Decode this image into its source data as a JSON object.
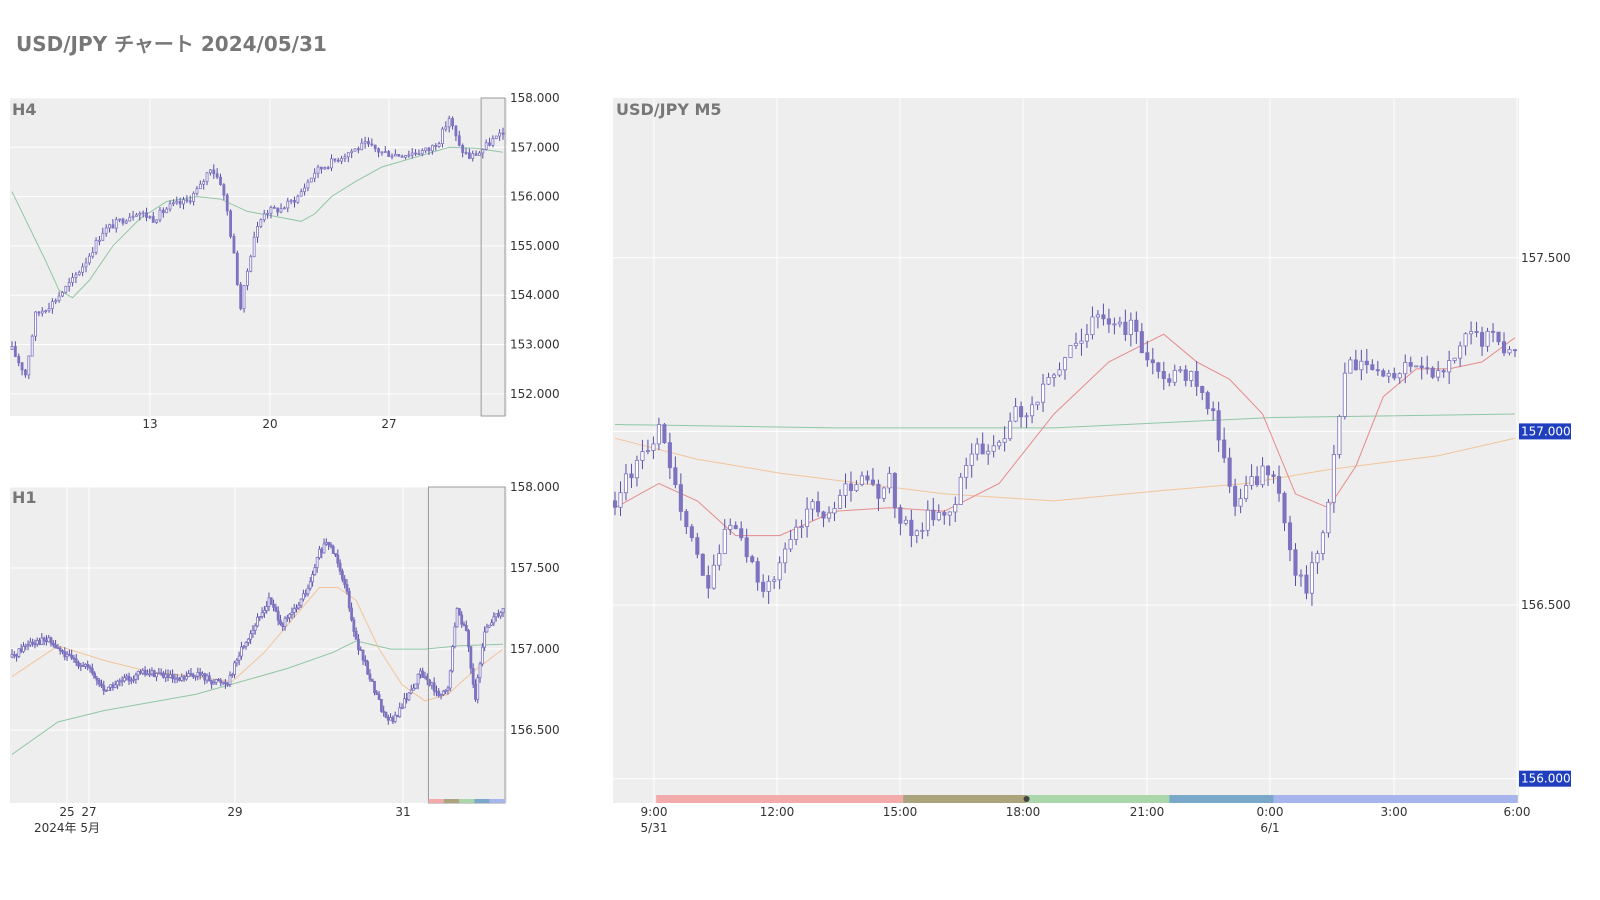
{
  "page": {
    "title": "USD/JPY チャート 2024/05/31"
  },
  "colors": {
    "plot_bg": "#eeeeee",
    "grid": "#ffffff",
    "candle": "#7d73c0",
    "wick": "#5a4fa8",
    "ma_green": "#8fc7a3",
    "ma_red": "#e68a8a",
    "ma_orange": "#f2c49a",
    "price_tag": "#1f3fbf",
    "sessions": [
      "#f2aaaa",
      "#aaa37c",
      "#aad6aa",
      "#7aa8c8",
      "#a8b4ec"
    ]
  },
  "chart_data": [
    {
      "id": "h4",
      "type": "candlestick",
      "title": "H4",
      "x_ticks": [
        "13",
        "20",
        "27"
      ],
      "y_ticks": [
        "158.000",
        "157.000",
        "156.000",
        "155.000",
        "154.000",
        "153.000",
        "152.000"
      ],
      "ylim": [
        151.55,
        158.0
      ],
      "close_path": [
        [
          0,
          152.9
        ],
        [
          4,
          152.4
        ],
        [
          7,
          153.6
        ],
        [
          12,
          153.85
        ],
        [
          18,
          154.3
        ],
        [
          22,
          154.7
        ],
        [
          27,
          155.3
        ],
        [
          32,
          155.5
        ],
        [
          37,
          155.7
        ],
        [
          42,
          155.55
        ],
        [
          47,
          155.8
        ],
        [
          52,
          155.9
        ],
        [
          56,
          156.2
        ],
        [
          59,
          156.6
        ],
        [
          62,
          156.3
        ],
        [
          64,
          155.7
        ],
        [
          66,
          154.8
        ],
        [
          68,
          153.75
        ],
        [
          70,
          154.5
        ],
        [
          72,
          155.2
        ],
        [
          75,
          155.7
        ],
        [
          80,
          155.75
        ],
        [
          85,
          156.0
        ],
        [
          90,
          156.5
        ],
        [
          95,
          156.7
        ],
        [
          100,
          156.9
        ],
        [
          105,
          157.05
        ],
        [
          110,
          156.9
        ],
        [
          115,
          156.85
        ],
        [
          120,
          156.9
        ],
        [
          124,
          156.95
        ],
        [
          127,
          157.15
        ],
        [
          130,
          157.6
        ],
        [
          133,
          157.0
        ],
        [
          136,
          156.8
        ],
        [
          139,
          156.9
        ],
        [
          143,
          157.15
        ],
        [
          146,
          157.25
        ]
      ],
      "ma": [
        {
          "color_key": "ma_green",
          "points": [
            [
              0,
              156.1
            ],
            [
              5,
              155.4
            ],
            [
              10,
              154.7
            ],
            [
              14,
              154.1
            ],
            [
              18,
              153.95
            ],
            [
              23,
              154.3
            ],
            [
              30,
              155.0
            ],
            [
              38,
              155.55
            ],
            [
              46,
              155.9
            ],
            [
              55,
              156.0
            ],
            [
              62,
              155.95
            ],
            [
              70,
              155.7
            ],
            [
              78,
              155.6
            ],
            [
              86,
              155.5
            ],
            [
              90,
              155.65
            ],
            [
              95,
              156.0
            ],
            [
              102,
              156.3
            ],
            [
              110,
              156.6
            ],
            [
              120,
              156.8
            ],
            [
              130,
              157.0
            ],
            [
              138,
              156.98
            ],
            [
              146,
              156.9
            ]
          ]
        }
      ],
      "highlight_x": [
        139.5,
        146
      ]
    },
    {
      "id": "h1",
      "type": "candlestick",
      "title": "H1",
      "x_ticks": [
        "25",
        "27",
        "29",
        "31"
      ],
      "x_tick_sub": "2024年 5月",
      "y_ticks": [
        "158.000",
        "157.500",
        "157.000",
        "156.500"
      ],
      "ylim": [
        156.05,
        158.0
      ],
      "close_path": [
        [
          0,
          156.95
        ],
        [
          8,
          157.05
        ],
        [
          16,
          157.05
        ],
        [
          24,
          156.95
        ],
        [
          32,
          156.9
        ],
        [
          40,
          156.75
        ],
        [
          48,
          156.8
        ],
        [
          56,
          156.85
        ],
        [
          64,
          156.85
        ],
        [
          72,
          156.8
        ],
        [
          80,
          156.85
        ],
        [
          88,
          156.8
        ],
        [
          94,
          156.8
        ],
        [
          100,
          157.0
        ],
        [
          106,
          157.15
        ],
        [
          112,
          157.3
        ],
        [
          118,
          157.15
        ],
        [
          124,
          157.25
        ],
        [
          130,
          157.4
        ],
        [
          134,
          157.6
        ],
        [
          138,
          157.65
        ],
        [
          142,
          157.55
        ],
        [
          146,
          157.35
        ],
        [
          150,
          157.05
        ],
        [
          154,
          156.9
        ],
        [
          158,
          156.75
        ],
        [
          162,
          156.6
        ],
        [
          166,
          156.55
        ],
        [
          170,
          156.65
        ],
        [
          174,
          156.75
        ],
        [
          178,
          156.85
        ],
        [
          182,
          156.8
        ],
        [
          186,
          156.7
        ],
        [
          190,
          156.75
        ],
        [
          194,
          157.25
        ],
        [
          198,
          157.1
        ],
        [
          202,
          156.7
        ],
        [
          206,
          157.1
        ],
        [
          210,
          157.2
        ],
        [
          214,
          157.25
        ]
      ],
      "ma": [
        {
          "color_key": "ma_green",
          "points": [
            [
              0,
              156.35
            ],
            [
              20,
              156.55
            ],
            [
              40,
              156.62
            ],
            [
              60,
              156.67
            ],
            [
              80,
              156.72
            ],
            [
              100,
              156.8
            ],
            [
              120,
              156.88
            ],
            [
              140,
              156.98
            ],
            [
              150,
              157.05
            ],
            [
              165,
              157.0
            ],
            [
              180,
              157.0
            ],
            [
              195,
              157.02
            ],
            [
              214,
              157.03
            ]
          ]
        },
        {
          "color_key": "ma_orange",
          "points": [
            [
              0,
              156.83
            ],
            [
              20,
              157.02
            ],
            [
              40,
              156.93
            ],
            [
              60,
              156.86
            ],
            [
              80,
              156.83
            ],
            [
              96,
              156.8
            ],
            [
              110,
              156.98
            ],
            [
              122,
              157.18
            ],
            [
              134,
              157.38
            ],
            [
              142,
              157.38
            ],
            [
              150,
              157.3
            ],
            [
              160,
              157.0
            ],
            [
              170,
              156.78
            ],
            [
              180,
              156.68
            ],
            [
              190,
              156.72
            ],
            [
              200,
              156.85
            ],
            [
              214,
              157.0
            ]
          ]
        }
      ],
      "highlight_x": [
        181.5,
        214
      ],
      "sessions_visible": true
    },
    {
      "id": "m5",
      "type": "candlestick",
      "title": "USD/JPY M5",
      "x_ticks": [
        "9:00",
        "12:00",
        "15:00",
        "18:00",
        "21:00",
        "0:00",
        "3:00",
        "6:00"
      ],
      "x_tick_subs": {
        "0": "5/31",
        "5": "6/1"
      },
      "y_ticks": [
        "157.500",
        "157.000",
        "156.500",
        "156.000"
      ],
      "price_tags": [
        "157.000",
        "156.000"
      ],
      "ylim": [
        155.93,
        157.96
      ],
      "close_path": [
        [
          0,
          156.8
        ],
        [
          3,
          156.88
        ],
        [
          5,
          156.95
        ],
        [
          8,
          157.0
        ],
        [
          10,
          156.9
        ],
        [
          12,
          156.75
        ],
        [
          15,
          156.65
        ],
        [
          17,
          156.55
        ],
        [
          20,
          156.72
        ],
        [
          22,
          156.7
        ],
        [
          25,
          156.62
        ],
        [
          27,
          156.55
        ],
        [
          30,
          156.6
        ],
        [
          33,
          156.72
        ],
        [
          36,
          156.8
        ],
        [
          39,
          156.75
        ],
        [
          42,
          156.83
        ],
        [
          45,
          156.85
        ],
        [
          48,
          156.82
        ],
        [
          50,
          156.86
        ],
        [
          52,
          156.75
        ],
        [
          54,
          156.7
        ],
        [
          57,
          156.75
        ],
        [
          60,
          156.75
        ],
        [
          62,
          156.8
        ],
        [
          64,
          156.9
        ],
        [
          66,
          156.95
        ],
        [
          69,
          156.95
        ],
        [
          71,
          156.98
        ],
        [
          73,
          157.05
        ],
        [
          75,
          157.05
        ],
        [
          77,
          157.1
        ],
        [
          79,
          157.15
        ],
        [
          81,
          157.2
        ],
        [
          84,
          157.25
        ],
        [
          86,
          157.3
        ],
        [
          88,
          157.35
        ],
        [
          91,
          157.3
        ],
        [
          94,
          157.3
        ],
        [
          96,
          157.25
        ],
        [
          98,
          157.2
        ],
        [
          100,
          157.15
        ],
        [
          103,
          157.18
        ],
        [
          106,
          157.15
        ],
        [
          109,
          157.05
        ],
        [
          111,
          156.9
        ],
        [
          113,
          156.78
        ],
        [
          116,
          156.85
        ],
        [
          118,
          156.88
        ],
        [
          120,
          156.85
        ],
        [
          122,
          156.75
        ],
        [
          124,
          156.6
        ],
        [
          126,
          156.55
        ],
        [
          128,
          156.65
        ],
        [
          130,
          156.8
        ],
        [
          132,
          157.05
        ],
        [
          133,
          157.15
        ],
        [
          134,
          157.2
        ],
        [
          136,
          157.2
        ],
        [
          138,
          157.18
        ],
        [
          140,
          157.15
        ],
        [
          142,
          157.15
        ],
        [
          144,
          157.2
        ],
        [
          146,
          157.18
        ],
        [
          148,
          157.18
        ],
        [
          150,
          157.18
        ],
        [
          152,
          157.2
        ],
        [
          154,
          157.25
        ],
        [
          156,
          157.3
        ],
        [
          158,
          157.25
        ],
        [
          160,
          157.3
        ],
        [
          162,
          157.25
        ],
        [
          164,
          157.25
        ]
      ],
      "ma": [
        {
          "color_key": "ma_green",
          "points": [
            [
              0,
              157.02
            ],
            [
              40,
              157.01
            ],
            [
              80,
              157.01
            ],
            [
              120,
              157.04
            ],
            [
              164,
              157.05
            ]
          ]
        },
        {
          "color_key": "ma_orange",
          "points": [
            [
              0,
              156.98
            ],
            [
              15,
              156.92
            ],
            [
              30,
              156.88
            ],
            [
              45,
              156.85
            ],
            [
              60,
              156.82
            ],
            [
              80,
              156.8
            ],
            [
              100,
              156.83
            ],
            [
              115,
              156.85
            ],
            [
              130,
              156.89
            ],
            [
              150,
              156.93
            ],
            [
              164,
              156.98
            ]
          ]
        },
        {
          "color_key": "ma_red",
          "points": [
            [
              0,
              156.78
            ],
            [
              8,
              156.85
            ],
            [
              15,
              156.8
            ],
            [
              22,
              156.7
            ],
            [
              30,
              156.7
            ],
            [
              40,
              156.77
            ],
            [
              50,
              156.78
            ],
            [
              60,
              156.77
            ],
            [
              70,
              156.85
            ],
            [
              80,
              157.05
            ],
            [
              90,
              157.2
            ],
            [
              100,
              157.28
            ],
            [
              106,
              157.2
            ],
            [
              112,
              157.15
            ],
            [
              118,
              157.05
            ],
            [
              124,
              156.82
            ],
            [
              130,
              156.78
            ],
            [
              135,
              156.9
            ],
            [
              140,
              157.1
            ],
            [
              146,
              157.18
            ],
            [
              152,
              157.18
            ],
            [
              158,
              157.2
            ],
            [
              164,
              157.27
            ]
          ]
        }
      ],
      "sessions": [
        [
          7.5,
          52.5
        ],
        [
          52.5,
          75
        ],
        [
          75,
          101
        ],
        [
          101,
          120
        ],
        [
          120,
          164.5
        ]
      ]
    }
  ]
}
